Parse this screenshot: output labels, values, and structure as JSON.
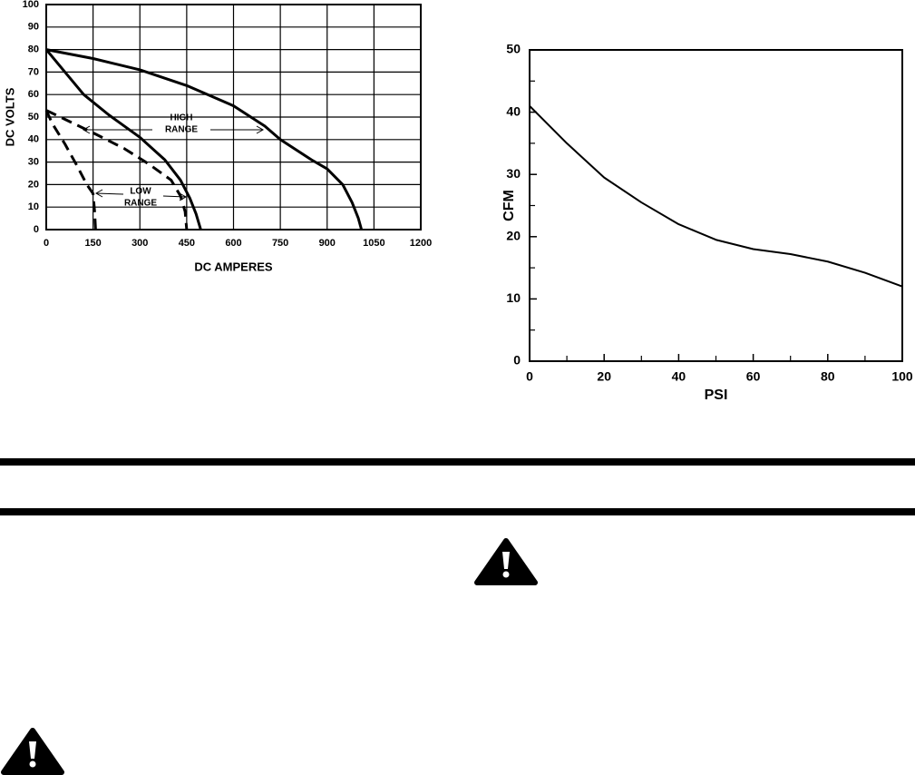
{
  "chart_data": [
    {
      "type": "line",
      "xlabel": "DC AMPERES",
      "ylabel": "DC VOLTS",
      "xlim": [
        0,
        1200
      ],
      "xticks": [
        0,
        150,
        300,
        450,
        600,
        750,
        900,
        1050,
        1200
      ],
      "ylim": [
        0,
        100
      ],
      "yticks": [
        0,
        10,
        20,
        30,
        40,
        50,
        60,
        70,
        80,
        90,
        100
      ],
      "grid": true,
      "annotations": [
        [
          "HIGH",
          "RANGE"
        ],
        [
          "LOW",
          "RANGE"
        ]
      ],
      "series": [
        {
          "color": "#000000",
          "dash": false,
          "x": [
            0,
            150,
            300,
            450,
            600,
            700,
            750,
            850,
            900,
            950,
            980,
            1000,
            1010
          ],
          "values": [
            80,
            76,
            71,
            64,
            55,
            46,
            40,
            31,
            27,
            20,
            12,
            5,
            0
          ]
        },
        {
          "color": "#000000",
          "dash": false,
          "x": [
            0,
            60,
            120,
            200,
            300,
            380,
            430,
            460,
            480,
            495
          ],
          "values": [
            80,
            70,
            60,
            51,
            41,
            31,
            22,
            14,
            7,
            0
          ]
        },
        {
          "color": "#000000",
          "dash": true,
          "x": [
            0,
            60,
            150,
            250,
            330,
            400,
            430,
            445,
            450
          ],
          "values": [
            53,
            49,
            43,
            36,
            29,
            22,
            15,
            8,
            0
          ]
        },
        {
          "color": "#000000",
          "dash": true,
          "x": [
            0,
            20,
            60,
            100,
            130,
            150,
            155,
            158
          ],
          "values": [
            53,
            47,
            38,
            28,
            20,
            16,
            8,
            0
          ]
        }
      ]
    },
    {
      "type": "line",
      "xlabel": "PSI",
      "ylabel": "CFM",
      "xlim": [
        0,
        100
      ],
      "xticks": [
        0,
        20,
        40,
        60,
        80,
        100
      ],
      "xticks_minor": [
        10,
        30,
        50,
        70,
        90
      ],
      "ylim": [
        0,
        50
      ],
      "yticks": [
        0,
        10,
        20,
        30,
        40,
        50
      ],
      "yticks_minor": [
        5,
        15,
        25,
        35,
        45
      ],
      "grid": false,
      "series": [
        {
          "color": "#000000",
          "dash": false,
          "x": [
            0,
            10,
            20,
            30,
            40,
            50,
            60,
            70,
            80,
            90,
            100
          ],
          "values": [
            41,
            35,
            29.5,
            25.5,
            22,
            19.5,
            18,
            17.2,
            16,
            14.2,
            12
          ]
        }
      ]
    }
  ]
}
